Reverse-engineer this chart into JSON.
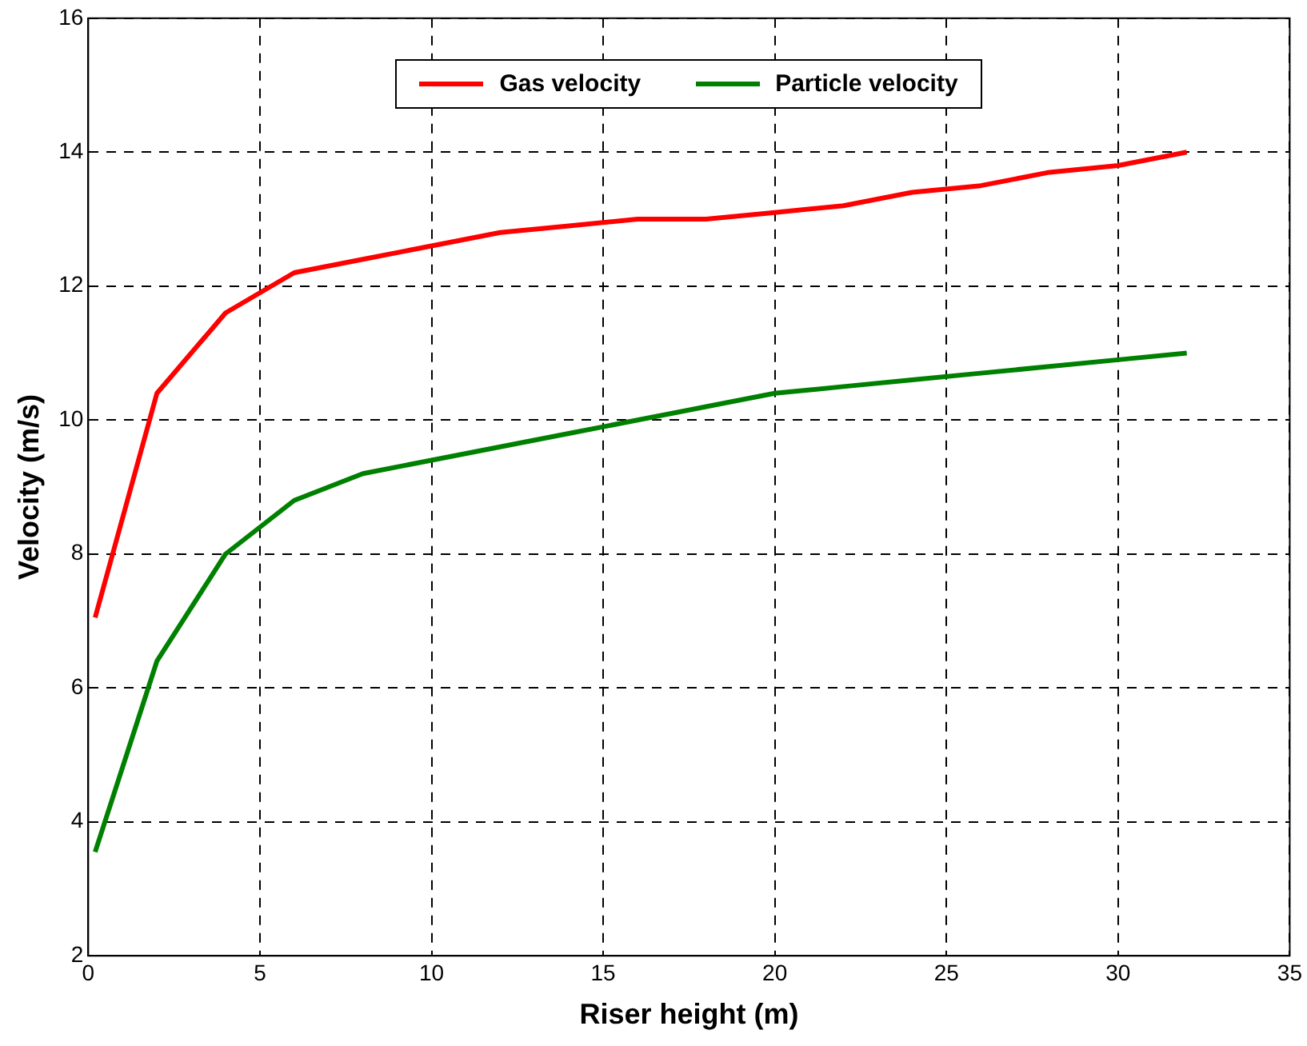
{
  "chart_data": {
    "type": "line",
    "xlabel": "Riser height (m)",
    "ylabel": "Velocity (m/s)",
    "x": [
      0.2,
      2,
      4,
      6,
      8,
      10,
      12,
      14,
      16,
      18,
      20,
      22,
      24,
      26,
      28,
      30,
      32
    ],
    "series": [
      {
        "name": "Gas velocity",
        "color": "#ff0000",
        "values": [
          7.05,
          10.4,
          11.6,
          12.2,
          12.4,
          12.6,
          12.8,
          12.9,
          13.0,
          13.0,
          13.1,
          13.2,
          13.4,
          13.5,
          13.7,
          13.8,
          14.0
        ]
      },
      {
        "name": "Particle velocity",
        "color": "#008000",
        "values": [
          3.55,
          6.4,
          8.0,
          8.8,
          9.2,
          9.4,
          9.6,
          9.8,
          10.0,
          10.2,
          10.4,
          10.5,
          10.6,
          10.7,
          10.8,
          10.9,
          11.0
        ]
      }
    ],
    "xlim": [
      0,
      35
    ],
    "xticks": [
      0,
      5,
      10,
      15,
      20,
      25,
      30,
      35
    ],
    "ylim": [
      2,
      16
    ],
    "yticks": [
      2,
      4,
      6,
      8,
      10,
      12,
      14,
      16
    ],
    "grid": true,
    "legend": "top",
    "marker": "none",
    "line_style": "solid"
  }
}
